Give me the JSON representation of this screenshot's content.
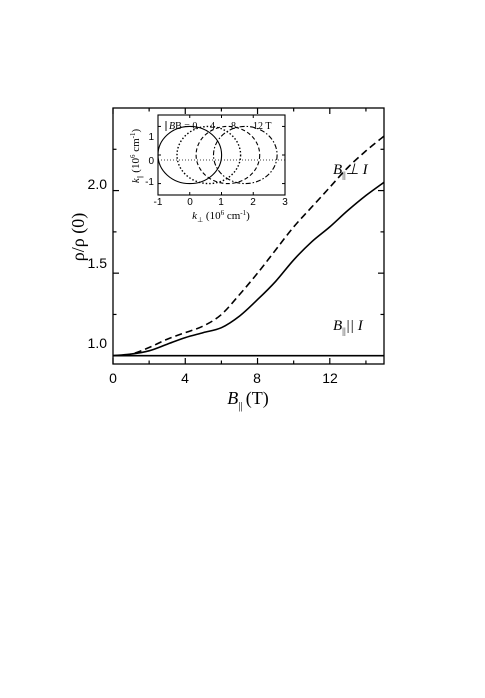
{
  "chart_data": [
    {
      "type": "line",
      "xlabel_main": "B",
      "xlabel_sub": "||",
      "xlabel_unit": "(T)",
      "ylabel": "ρ/ρ (0)",
      "xlim": [
        0,
        15
      ],
      "ylim": [
        0.95,
        2.5
      ],
      "x_ticks": [
        0,
        4,
        8,
        12
      ],
      "y_ticks": [
        1.0,
        1.5,
        2.0
      ],
      "x_tick_labels": [
        "0",
        "4",
        "8",
        "12"
      ],
      "y_tick_labels": [
        "1.0",
        "1.5",
        "2.0"
      ],
      "series": [
        {
          "label_main": "B",
          "label_sub": "||",
          "label_rest": "⊥ I",
          "style": "dashed",
          "x": [
            0,
            1,
            2,
            3,
            4,
            5,
            6,
            7,
            8,
            9,
            10,
            11,
            12,
            13,
            14,
            15
          ],
          "y": [
            1.0,
            1.01,
            1.05,
            1.1,
            1.14,
            1.18,
            1.25,
            1.37,
            1.5,
            1.64,
            1.78,
            1.9,
            2.02,
            2.14,
            2.24,
            2.33
          ]
        },
        {
          "label_main": "B",
          "label_sub": "||",
          "label_rest": "⊥ I",
          "style": "solid",
          "x": [
            0,
            1,
            2,
            3,
            4,
            5,
            6,
            7,
            8,
            9,
            10,
            11,
            12,
            13,
            14,
            15
          ],
          "y": [
            1.0,
            1.01,
            1.03,
            1.07,
            1.11,
            1.14,
            1.17,
            1.24,
            1.34,
            1.45,
            1.58,
            1.69,
            1.78,
            1.88,
            1.97,
            2.05
          ]
        },
        {
          "label_main": "B",
          "label_sub": "||",
          "label_rest": "|| I",
          "style": "solid",
          "x": [
            0,
            15
          ],
          "y": [
            1.0,
            1.0
          ]
        }
      ]
    },
    {
      "type": "line",
      "xlabel_main": "k",
      "xlabel_sub": "⊥",
      "xlabel_rest": " (10",
      "xlabel_sup": "6",
      "xlabel_end": " cm",
      "xlabel_sup2": "-1",
      "xlabel_close": ")",
      "ylabel_main": "k",
      "ylabel_sub": "||",
      "ylabel_rest": " (10",
      "ylabel_sup": "6",
      "ylabel_end": " cm",
      "ylabel_sup2": "-1",
      "ylabel_close": ")",
      "xlim": [
        -1,
        3
      ],
      "ylim": [
        -1.4,
        1.4
      ],
      "x_tick_labels": [
        "-1",
        "0",
        "1",
        "2",
        "3"
      ],
      "y_tick_labels": [
        "-1",
        "0",
        "1"
      ],
      "annotations": [
        "B = 0",
        "4",
        "8",
        "12 T"
      ],
      "series": [
        {
          "name": "0",
          "center": 0.0,
          "radius": 1.0,
          "style": "solid"
        },
        {
          "name": "4",
          "center": 0.6,
          "radius": 1.0,
          "style": "dotted"
        },
        {
          "name": "8",
          "center": 1.2,
          "radius": 1.0,
          "style": "dashed"
        },
        {
          "name": "12",
          "center": 1.75,
          "radius": 1.0,
          "style": "dashdot"
        }
      ]
    }
  ]
}
